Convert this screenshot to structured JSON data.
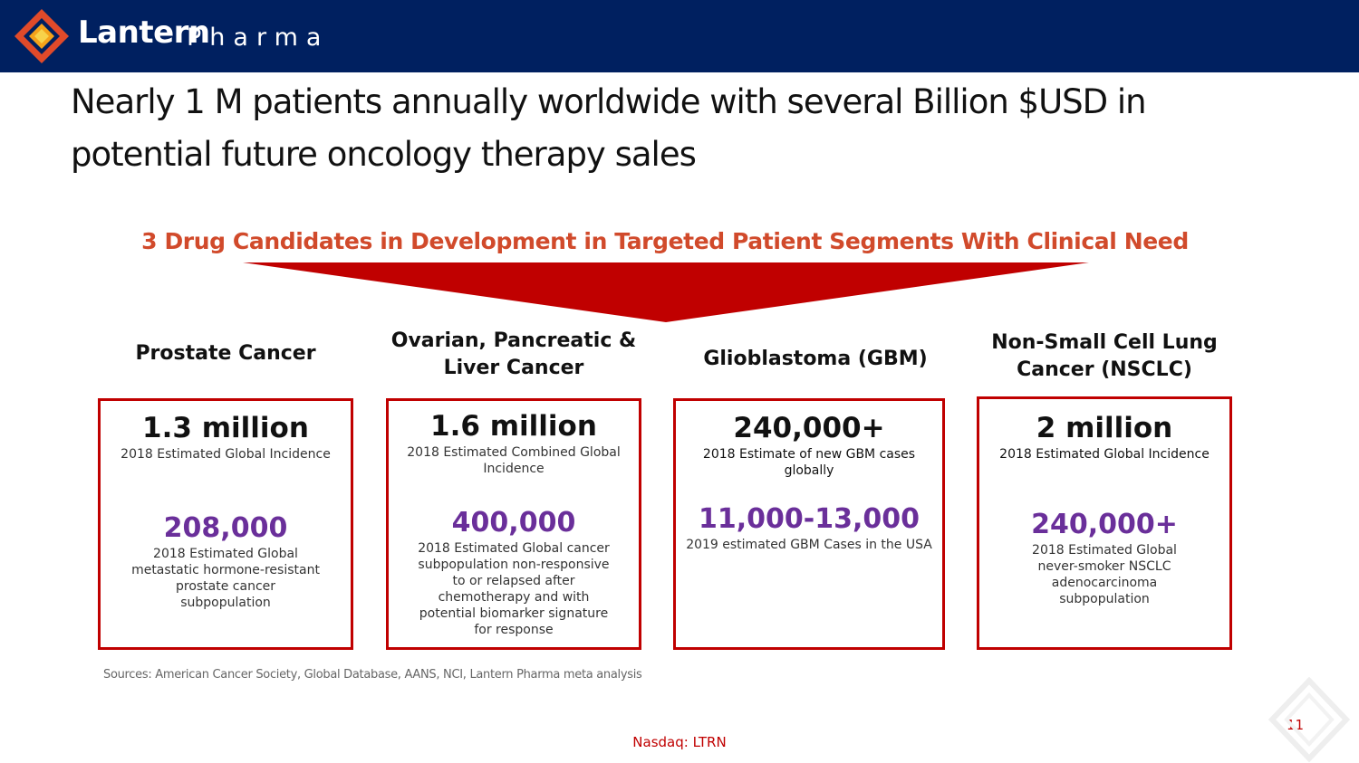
{
  "brand": {
    "name": "Lantern",
    "sub": "Pharma",
    "colors": {
      "navy": "#002060",
      "red": "#c00000",
      "orange": "#d14a2b",
      "purple": "#6a2f9a"
    }
  },
  "headline": "Nearly 1 M patients annually worldwide with several Billion $USD in potential future oncology therapy sales",
  "subhead": "3 Drug Candidates in Development in Targeted Patient Segments With Clinical Need",
  "columns": [
    {
      "title": "Prostate Cancer",
      "primary_value": "1.3 million",
      "primary_desc": "2018 Estimated Global Incidence",
      "secondary_value": "208,000",
      "secondary_desc": "2018 Estimated Global metastatic hormone-resistant prostate cancer subpopulation"
    },
    {
      "title": "Ovarian, Pancreatic & Liver Cancer",
      "primary_value": "1.6 million",
      "primary_desc": "2018 Estimated Combined Global Incidence",
      "secondary_value": "400,000",
      "secondary_desc": "2018 Estimated Global cancer subpopulation non-responsive to or relapsed after chemotherapy and with potential biomarker signature for response"
    },
    {
      "title": "Glioblastoma (GBM)",
      "primary_value": "240,000+",
      "primary_desc": "2018 Estimate of new GBM cases globally",
      "secondary_value": "11,000-13,000",
      "secondary_desc": "2019 estimated GBM Cases in the USA"
    },
    {
      "title": "Non-Small Cell Lung Cancer (NSCLC)",
      "primary_value": "2 million",
      "primary_desc": "2018 Estimated Global Incidence",
      "secondary_value": "240,000+",
      "secondary_desc": "2018 Estimated Global never-smoker NSCLC adenocarcinoma subpopulation"
    }
  ],
  "sources": "Sources: American Cancer Society, Global Database, AANS, NCI, Lantern Pharma meta analysis",
  "footer": "Nasdaq: LTRN",
  "page_number": "11",
  "icons": {
    "logo": "lantern-logo-icon",
    "funnel": "funnel-arrow-icon",
    "corner": "corner-diamond-icon"
  }
}
